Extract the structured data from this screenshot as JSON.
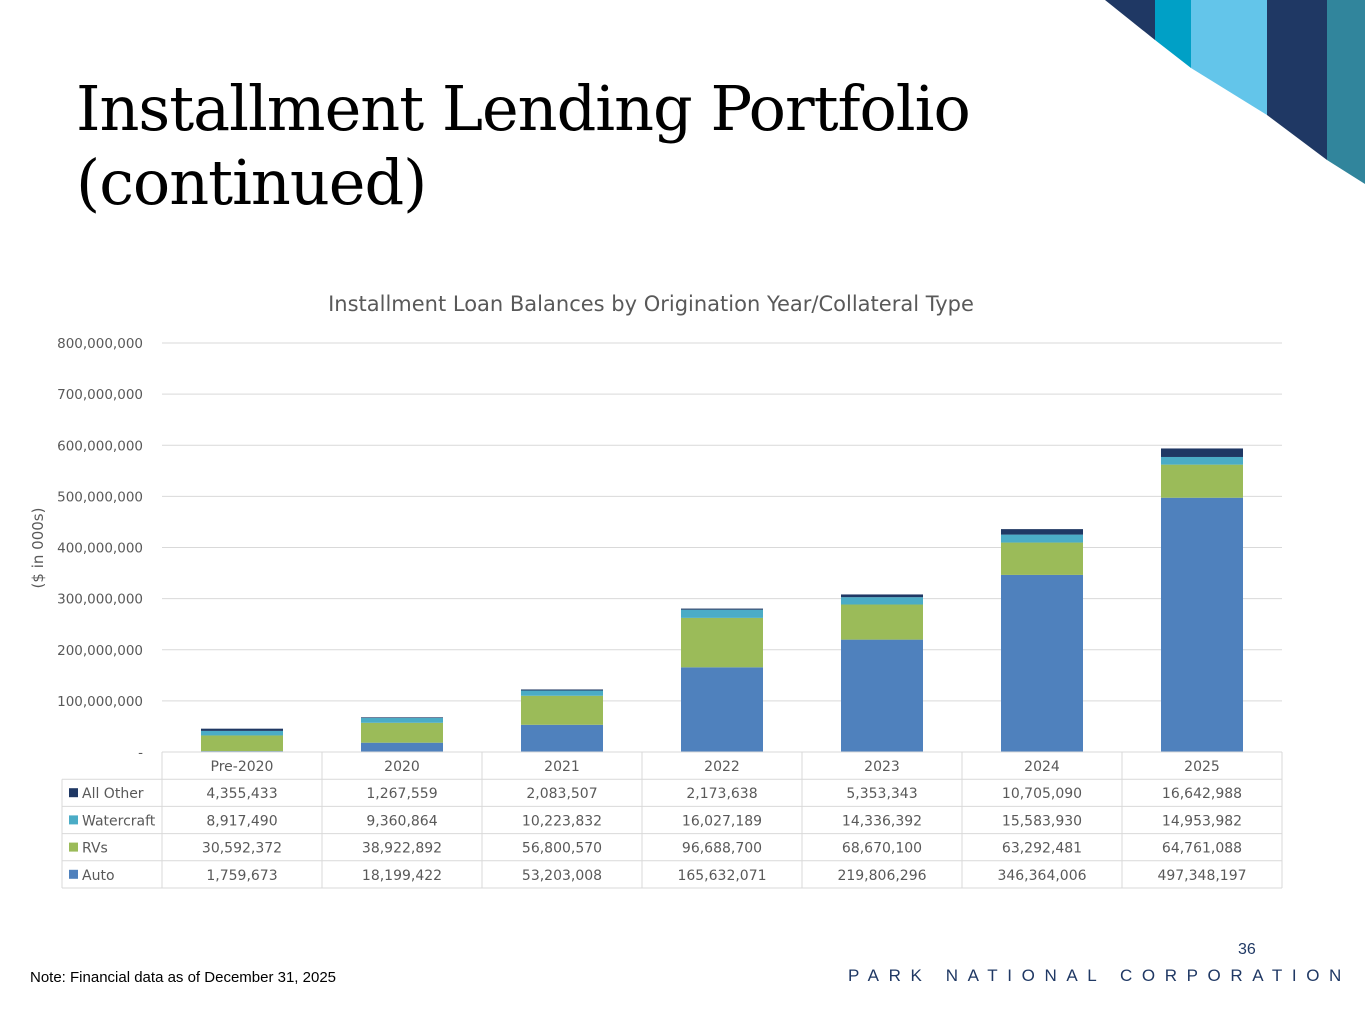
{
  "slide": {
    "title_line1": "Installment Lending Portfolio",
    "title_line2": "(continued)",
    "footnote": "Note: Financial data as of December 31, 2025",
    "page_number": "36",
    "brand": "PARK NATIONAL CORPORATION"
  },
  "colors": {
    "Auto": "#4f81bd",
    "RVs": "#9bbb59",
    "Watercraft": "#4bacc6",
    "All Other": "#1f3864",
    "gridline": "#d9d9d9",
    "text": "#595959",
    "decor": [
      "#1f3864",
      "#00a0c6",
      "#63c5ea",
      "#31859c"
    ]
  },
  "chart_data": {
    "type": "bar",
    "stacked": true,
    "title": "Installment Loan Balances by Origination Year/Collateral Type",
    "xlabel": "",
    "ylabel": "($ in 000s)",
    "ylim": [
      0,
      800000000
    ],
    "yticks": [
      0,
      100000000,
      200000000,
      300000000,
      400000000,
      500000000,
      600000000,
      700000000,
      800000000
    ],
    "ytick_labels": [
      "-",
      "100,000,000",
      "200,000,000",
      "300,000,000",
      "400,000,000",
      "500,000,000",
      "600,000,000",
      "700,000,000",
      "800,000,000"
    ],
    "grid": true,
    "legend": "data table",
    "categories": [
      "Pre-2020",
      "2020",
      "2021",
      "2022",
      "2023",
      "2024",
      "2025"
    ],
    "series": [
      {
        "name": "Auto",
        "values": [
          1759673,
          18199422,
          53203008,
          165632071,
          219806296,
          346364006,
          497348197
        ]
      },
      {
        "name": "RVs",
        "values": [
          30592372,
          38922892,
          56800570,
          96688700,
          68670100,
          63292481,
          64761088
        ]
      },
      {
        "name": "Watercraft",
        "values": [
          8917490,
          9360864,
          10223832,
          16027189,
          14336392,
          15583930,
          14953982
        ]
      },
      {
        "name": "All Other",
        "values": [
          4355433,
          1267559,
          2083507,
          2173638,
          5353343,
          10705090,
          16642988
        ]
      }
    ],
    "table_rows": [
      {
        "name": "All Other",
        "cells": [
          "4,355,433",
          "1,267,559",
          "2,083,507",
          "2,173,638",
          "5,353,343",
          "10,705,090",
          "16,642,988"
        ]
      },
      {
        "name": "Watercraft",
        "cells": [
          "8,917,490",
          "9,360,864",
          "10,223,832",
          "16,027,189",
          "14,336,392",
          "15,583,930",
          "14,953,982"
        ]
      },
      {
        "name": "RVs",
        "cells": [
          "30,592,372",
          "38,922,892",
          "56,800,570",
          "96,688,700",
          "68,670,100",
          "63,292,481",
          "64,761,088"
        ]
      },
      {
        "name": "Auto",
        "cells": [
          "1,759,673",
          "18,199,422",
          "53,203,008",
          "165,632,071",
          "219,806,296",
          "346,364,006",
          "497,348,197"
        ]
      }
    ]
  }
}
